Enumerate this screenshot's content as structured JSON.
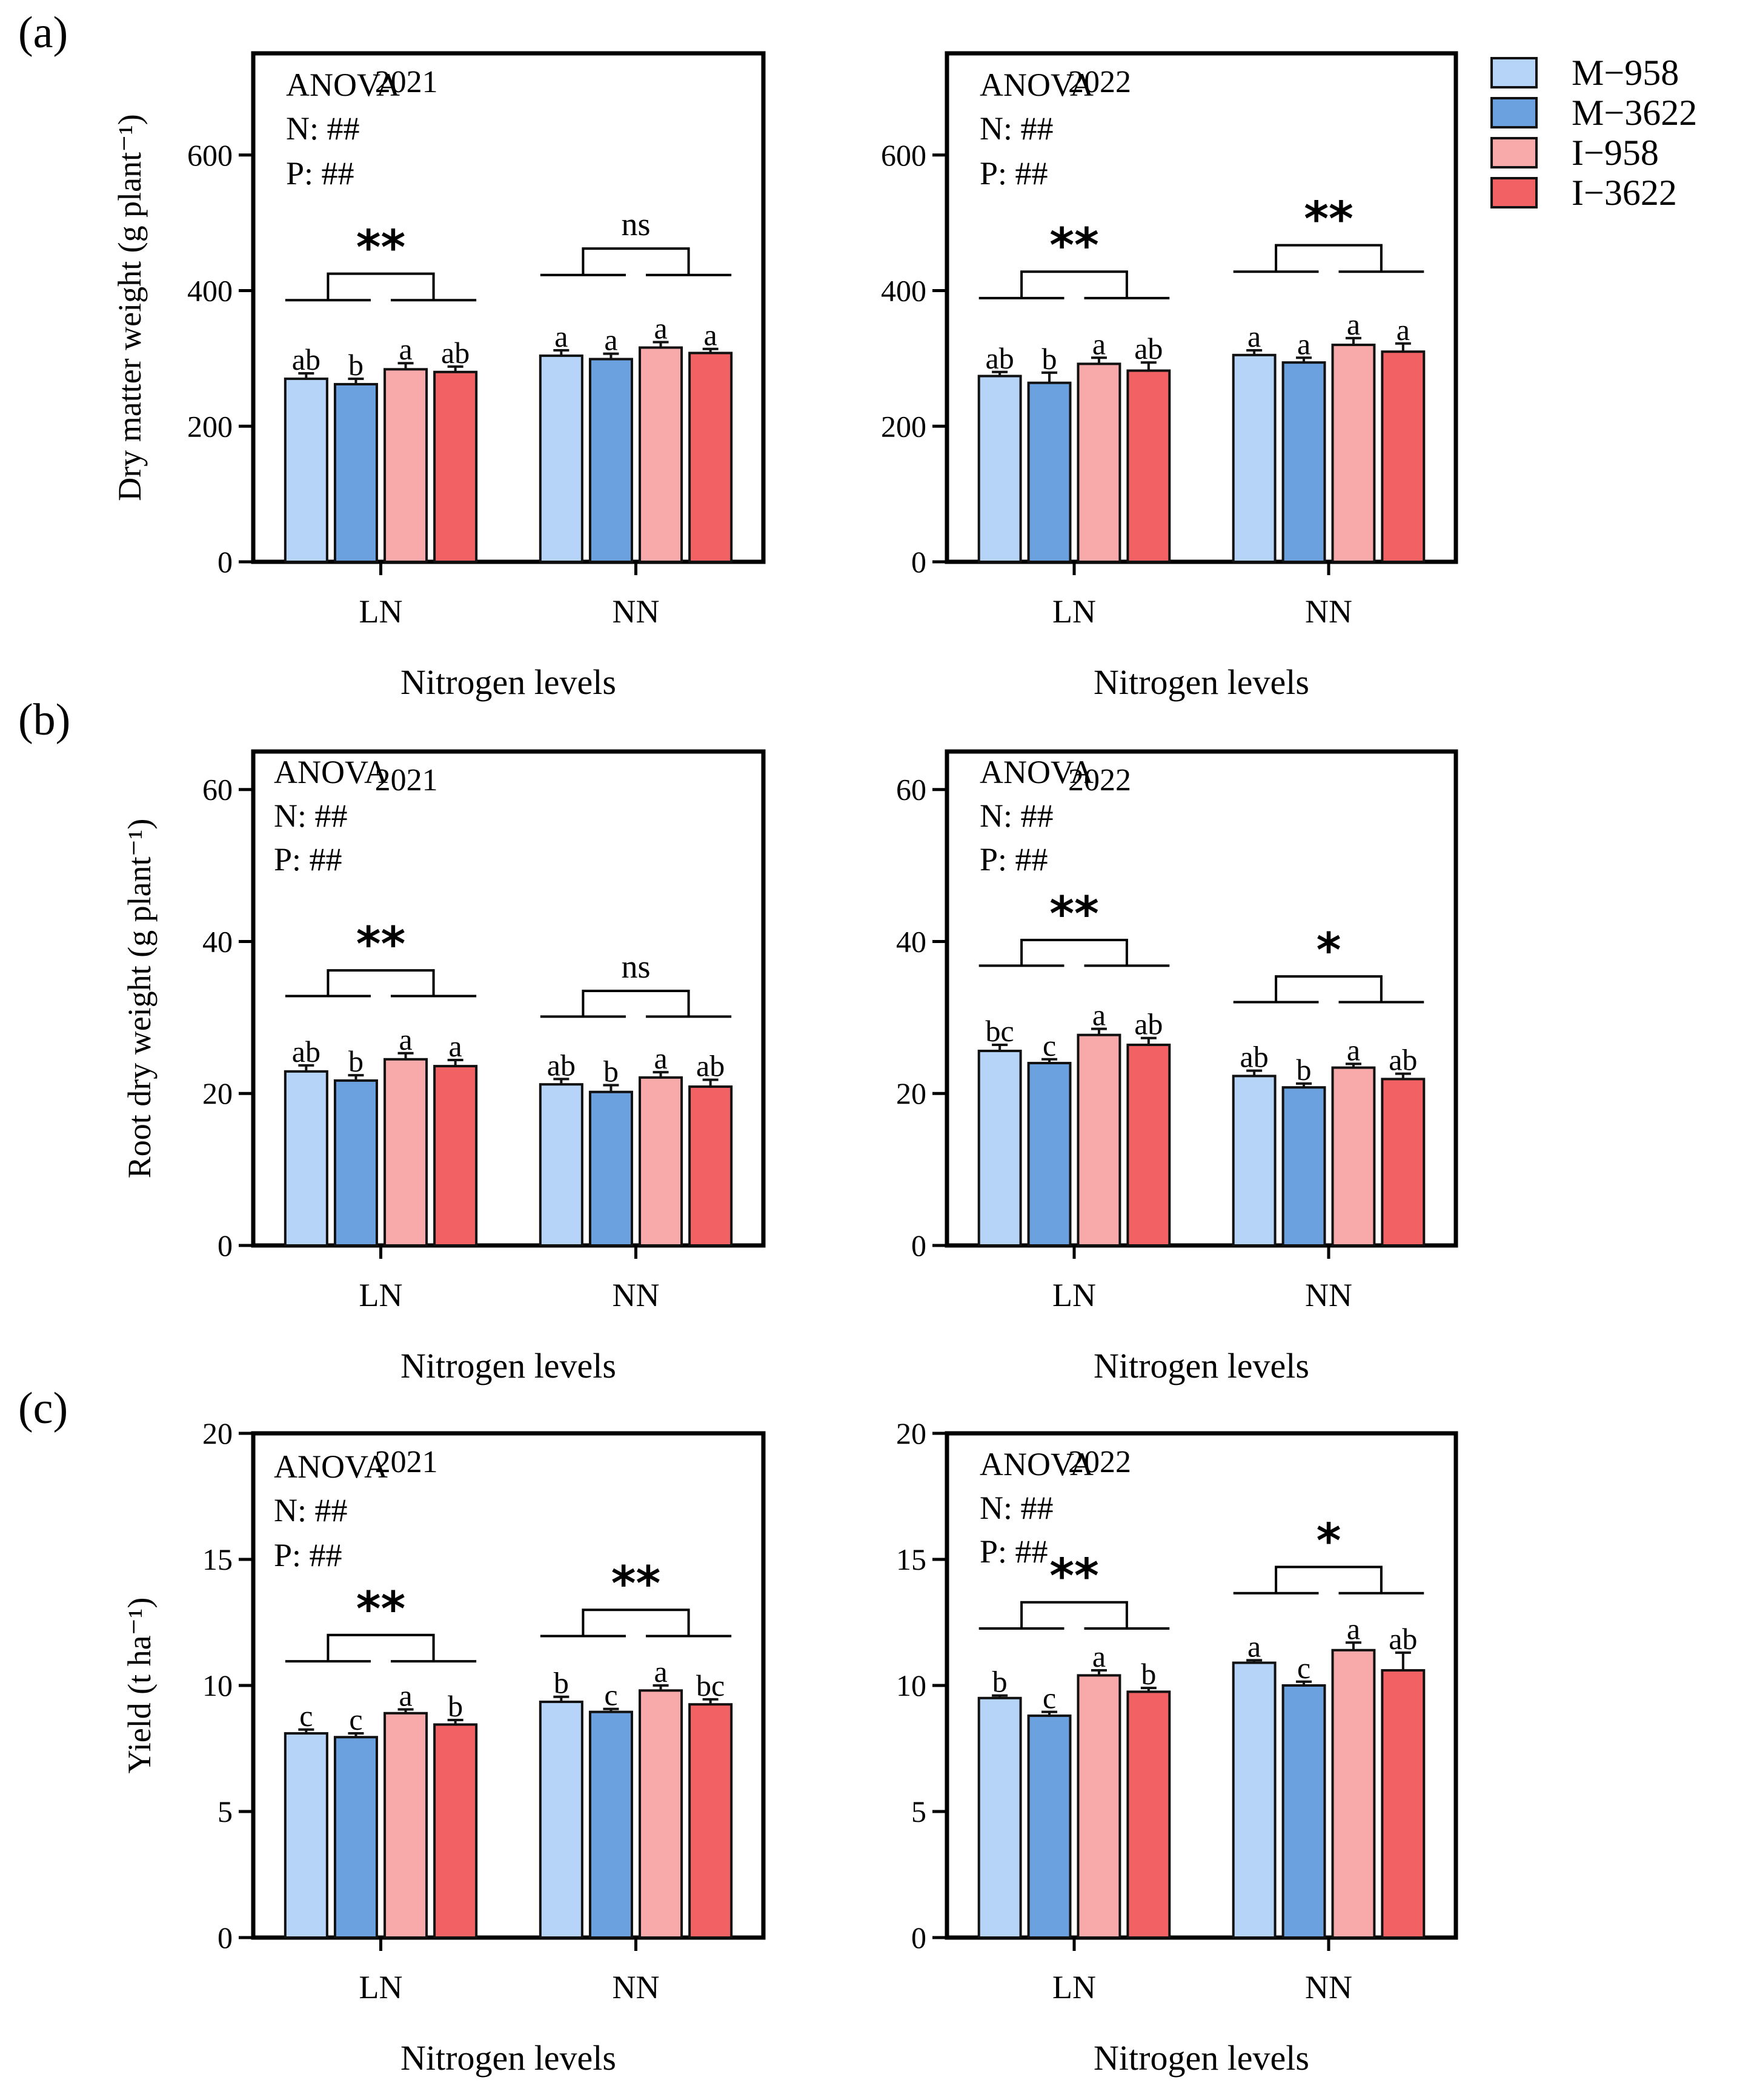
{
  "panel_labels": [
    "(a)",
    "(b)",
    "(c)"
  ],
  "legend": {
    "entries": [
      {
        "name": "M−958",
        "color": "#b6d4f7"
      },
      {
        "name": "M−3622",
        "color": "#6aa1de"
      },
      {
        "name": "I−958",
        "color": "#f8a9a9"
      },
      {
        "name": "I−3622",
        "color": "#f26264"
      }
    ]
  },
  "anova": {
    "title": "ANOVA",
    "n_line": "N: ##",
    "p_line": "P: ##"
  },
  "chart_data": [
    {
      "type": "bar",
      "panel": "(a)",
      "title": "2021",
      "ylabel": "Dry matter weight (g plant⁻¹)",
      "xlabel": "Nitrogen levels",
      "categories": [
        "LN",
        "NN"
      ],
      "ylim": [
        0,
        750
      ],
      "yticks": [
        0,
        200,
        400,
        600
      ],
      "series": [
        {
          "name": "M−958",
          "values": [
            270,
            304
          ],
          "errors": [
            8,
            8
          ],
          "letters": [
            "ab",
            "a"
          ]
        },
        {
          "name": "M−3622",
          "values": [
            262,
            299
          ],
          "errors": [
            8,
            8
          ],
          "letters": [
            "b",
            "a"
          ]
        },
        {
          "name": "I−958",
          "values": [
            284,
            316
          ],
          "errors": [
            9,
            8
          ],
          "letters": [
            "a",
            "a"
          ]
        },
        {
          "name": "I−3622",
          "values": [
            280,
            308
          ],
          "errors": [
            8,
            6
          ],
          "letters": [
            "ab",
            "a"
          ]
        }
      ],
      "comparisons": [
        "**",
        "ns"
      ],
      "comparison_levels": [
        425,
        462
      ]
    },
    {
      "type": "bar",
      "panel": "(a)",
      "title": "2022",
      "ylabel": "",
      "xlabel": "Nitrogen levels",
      "categories": [
        "LN",
        "NN"
      ],
      "ylim": [
        0,
        750
      ],
      "yticks": [
        0,
        200,
        400,
        600
      ],
      "series": [
        {
          "name": "M−958",
          "values": [
            274,
            305
          ],
          "errors": [
            6,
            7
          ],
          "letters": [
            "ab",
            "a"
          ]
        },
        {
          "name": "M−3622",
          "values": [
            264,
            294
          ],
          "errors": [
            15,
            7
          ],
          "letters": [
            "b",
            "a"
          ]
        },
        {
          "name": "I−958",
          "values": [
            292,
            320
          ],
          "errors": [
            9,
            10
          ],
          "letters": [
            "a",
            "a"
          ]
        },
        {
          "name": "I−3622",
          "values": [
            282,
            310
          ],
          "errors": [
            12,
            12
          ],
          "letters": [
            "ab",
            "a"
          ]
        }
      ],
      "comparisons": [
        "**",
        "**"
      ],
      "comparison_levels": [
        428,
        467
      ]
    },
    {
      "type": "bar",
      "panel": "(b)",
      "title": "2021",
      "ylabel": "Root dry weight (g plant⁻¹)",
      "xlabel": "Nitrogen levels",
      "categories": [
        "LN",
        "NN"
      ],
      "ylim": [
        0,
        65
      ],
      "yticks": [
        0,
        20,
        40,
        60
      ],
      "series": [
        {
          "name": "M−958",
          "values": [
            22.9,
            21.2
          ],
          "errors": [
            0.8,
            0.7
          ],
          "letters": [
            "ab",
            "ab"
          ]
        },
        {
          "name": "M−3622",
          "values": [
            21.7,
            20.2
          ],
          "errors": [
            0.7,
            0.9
          ],
          "letters": [
            "b",
            "b"
          ]
        },
        {
          "name": "I−958",
          "values": [
            24.5,
            22.1
          ],
          "errors": [
            0.8,
            0.7
          ],
          "letters": [
            "a",
            "a"
          ]
        },
        {
          "name": "I−3622",
          "values": [
            23.6,
            20.9
          ],
          "errors": [
            0.8,
            0.9
          ],
          "letters": [
            "a",
            "ab"
          ]
        }
      ],
      "comparisons": [
        "**",
        "ns"
      ],
      "comparison_levels": [
        36.2,
        33.5
      ]
    },
    {
      "type": "bar",
      "panel": "(b)",
      "title": "2022",
      "ylabel": "",
      "xlabel": "Nitrogen levels",
      "categories": [
        "LN",
        "NN"
      ],
      "ylim": [
        0,
        65
      ],
      "yticks": [
        0,
        20,
        40,
        60
      ],
      "series": [
        {
          "name": "M−958",
          "values": [
            25.6,
            22.3
          ],
          "errors": [
            0.8,
            0.7
          ],
          "letters": [
            "bc",
            "ab"
          ]
        },
        {
          "name": "M−3622",
          "values": [
            24.0,
            20.8
          ],
          "errors": [
            0.5,
            0.5
          ],
          "letters": [
            "c",
            "b"
          ]
        },
        {
          "name": "I−958",
          "values": [
            27.7,
            23.4
          ],
          "errors": [
            0.8,
            0.5
          ],
          "letters": [
            "a",
            "a"
          ]
        },
        {
          "name": "I−3622",
          "values": [
            26.4,
            21.9
          ],
          "errors": [
            0.9,
            0.7
          ],
          "letters": [
            "ab",
            "ab"
          ]
        }
      ],
      "comparisons": [
        "**",
        "*"
      ],
      "comparison_levels": [
        40.2,
        35.4
      ]
    },
    {
      "type": "bar",
      "panel": "(c)",
      "title": "2021",
      "ylabel": "Yield (t ha⁻¹)",
      "xlabel": "Nitrogen levels",
      "categories": [
        "LN",
        "NN"
      ],
      "ylim": [
        0,
        20
      ],
      "yticks": [
        0,
        5,
        10,
        15,
        20
      ],
      "series": [
        {
          "name": "M−958",
          "values": [
            8.1,
            9.35
          ],
          "errors": [
            0.15,
            0.2
          ],
          "letters": [
            "c",
            "b"
          ]
        },
        {
          "name": "M−3622",
          "values": [
            7.95,
            8.95
          ],
          "errors": [
            0.15,
            0.12
          ],
          "letters": [
            "c",
            "c"
          ]
        },
        {
          "name": "I−958",
          "values": [
            8.9,
            9.8
          ],
          "errors": [
            0.15,
            0.2
          ],
          "letters": [
            "a",
            "a"
          ]
        },
        {
          "name": "I−3622",
          "values": [
            8.45,
            9.25
          ],
          "errors": [
            0.18,
            0.2
          ],
          "letters": [
            "b",
            "bc"
          ]
        }
      ],
      "comparisons": [
        "**",
        "**"
      ],
      "comparison_levels": [
        12.0,
        13.0
      ]
    },
    {
      "type": "bar",
      "panel": "(c)",
      "title": "2022",
      "ylabel": "",
      "xlabel": "Nitrogen levels",
      "categories": [
        "LN",
        "NN"
      ],
      "ylim": [
        0,
        20
      ],
      "yticks": [
        0,
        5,
        10,
        15,
        20
      ],
      "series": [
        {
          "name": "M−958",
          "values": [
            9.5,
            10.9
          ],
          "errors": [
            0.1,
            0.1
          ],
          "letters": [
            "b",
            "a"
          ]
        },
        {
          "name": "M−3622",
          "values": [
            8.8,
            10.0
          ],
          "errors": [
            0.15,
            0.15
          ],
          "letters": [
            "c",
            "c"
          ]
        },
        {
          "name": "I−958",
          "values": [
            10.4,
            11.4
          ],
          "errors": [
            0.2,
            0.3
          ],
          "letters": [
            "a",
            "a"
          ]
        },
        {
          "name": "I−3622",
          "values": [
            9.75,
            10.6
          ],
          "errors": [
            0.15,
            0.7
          ],
          "letters": [
            "b",
            "ab"
          ]
        }
      ],
      "comparisons": [
        "**",
        "*"
      ],
      "comparison_levels": [
        13.3,
        14.7
      ]
    }
  ]
}
